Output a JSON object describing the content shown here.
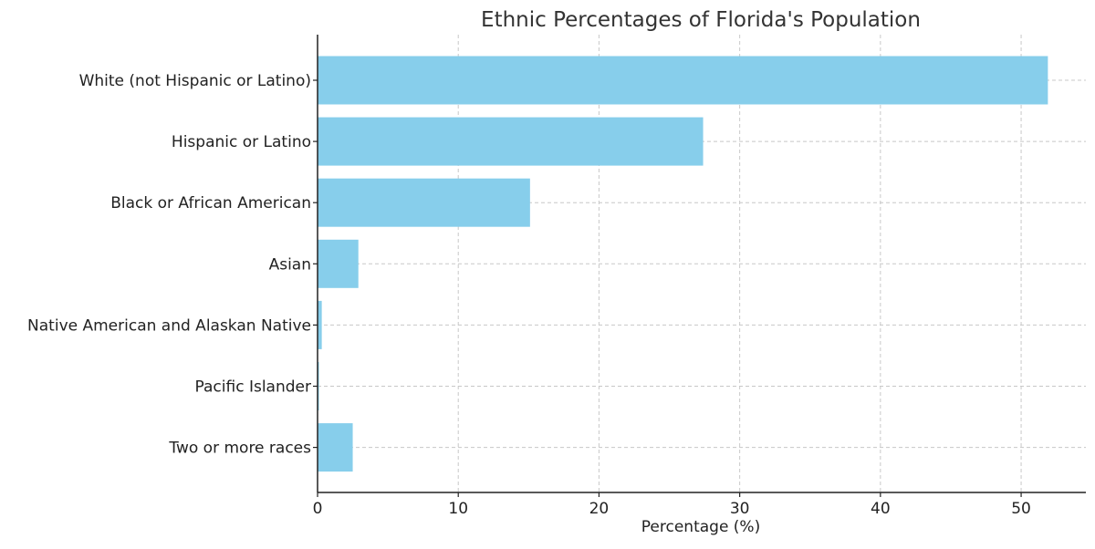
{
  "chart_data": {
    "type": "bar",
    "orientation": "horizontal",
    "title": "Ethnic Percentages of Florida's Population",
    "xlabel": "Percentage (%)",
    "ylabel": "",
    "categories": [
      "White (not Hispanic or Latino)",
      "Hispanic or Latino",
      "Black or African American",
      "Asian",
      "Native American and Alaskan Native",
      "Pacific Islander",
      "Two or more races"
    ],
    "values": [
      51.9,
      27.4,
      15.1,
      2.9,
      0.3,
      0.1,
      2.5
    ],
    "xlim": [
      0,
      54.6
    ],
    "xticks": [
      0,
      10,
      20,
      30,
      40,
      50
    ],
    "xtick_labels": [
      "0",
      "10",
      "20",
      "30",
      "40",
      "50"
    ],
    "grid": true,
    "bar_color": "#87CEEB"
  }
}
